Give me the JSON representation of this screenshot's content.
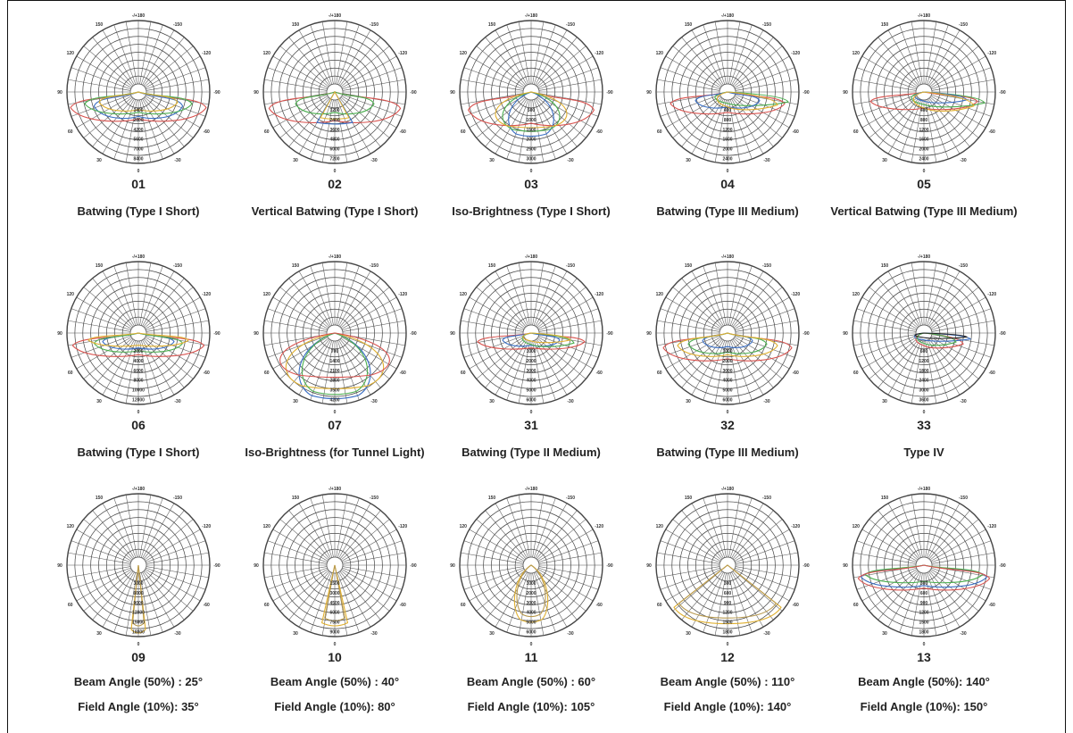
{
  "chart_data": [
    {
      "type": "polar",
      "number": "01",
      "description": "Batwing (Type I Short)",
      "tick_top": "-/+180",
      "angle_labels": [
        "-150",
        "150",
        "-120",
        "120",
        "-90",
        "90",
        "-60",
        "60",
        "-30",
        "30",
        "0"
      ],
      "radial_labels": [
        "1400",
        "2800",
        "4200",
        "5600",
        "7000",
        "8400"
      ],
      "series": [
        {
          "color": "#d9534f",
          "shape": "bat",
          "w": 0.95,
          "d": 0.4
        },
        {
          "color": "#3a6fc4",
          "shape": "bat",
          "w": 0.62,
          "d": 0.36
        },
        {
          "color": "#4caf50",
          "shape": "bat",
          "w": 0.75,
          "d": 0.3
        },
        {
          "color": "#e0b030",
          "shape": "bat",
          "w": 0.55,
          "d": 0.26
        }
      ]
    },
    {
      "type": "polar",
      "number": "02",
      "description": "Vertical Batwing (Type I Short)",
      "tick_top": "-/+180",
      "angle_labels": [
        "-150",
        "150",
        "-120",
        "120",
        "-90",
        "90",
        "-60",
        "60",
        "-30",
        "30",
        "0"
      ],
      "radial_labels": [
        "1200",
        "2400",
        "3600",
        "4800",
        "6000",
        "7200"
      ],
      "series": [
        {
          "color": "#d9534f",
          "shape": "bat",
          "w": 0.92,
          "d": 0.42
        },
        {
          "color": "#3a6fc4",
          "shape": "cone",
          "w": 0.25,
          "d": 0.45
        },
        {
          "color": "#4caf50",
          "shape": "bat",
          "w": 0.55,
          "d": 0.3
        },
        {
          "color": "#e0b030",
          "shape": "cone",
          "w": 0.2,
          "d": 0.38
        }
      ]
    },
    {
      "type": "polar",
      "number": "03",
      "description": "Iso-Brightness (Type I Short)",
      "tick_top": "-/+180",
      "angle_labels": [
        "-150",
        "150",
        "-120",
        "120",
        "-90",
        "90",
        "-60",
        "60",
        "-30",
        "30",
        "0"
      ],
      "radial_labels": [
        "500",
        "1000",
        "1500",
        "2000",
        "2500",
        "3000"
      ],
      "series": [
        {
          "color": "#d9534f",
          "shape": "bat",
          "w": 0.88,
          "d": 0.46
        },
        {
          "color": "#3a6fc4",
          "shape": "round",
          "w": 0.38,
          "d": 0.62
        },
        {
          "color": "#4caf50",
          "shape": "round",
          "w": 0.48,
          "d": 0.55
        },
        {
          "color": "#e0b030",
          "shape": "round",
          "w": 0.6,
          "d": 0.5
        }
      ]
    },
    {
      "type": "polar",
      "number": "04",
      "description": "Batwing (Type III Medium)",
      "tick_top": "-/+180",
      "angle_labels": [
        "-150",
        "150",
        "-120",
        "120",
        "-90",
        "90",
        "-60",
        "60",
        "-30",
        "30",
        "0"
      ],
      "radial_labels": [
        "400",
        "800",
        "1200",
        "1600",
        "2000",
        "2400"
      ],
      "series": [
        {
          "color": "#d9534f",
          "shape": "bat",
          "w": 0.8,
          "d": 0.3
        },
        {
          "color": "#4caf50",
          "shape": "side",
          "w": 0.85,
          "d": 0.2
        },
        {
          "color": "#3a6fc4",
          "shape": "bat",
          "w": 0.45,
          "d": 0.22
        },
        {
          "color": "#e0b030",
          "shape": "side",
          "w": 0.7,
          "d": 0.26
        }
      ]
    },
    {
      "type": "polar",
      "number": "05",
      "description": "Vertical Batwing (Type III Medium)",
      "tick_top": "-/+180",
      "angle_labels": [
        "-150",
        "150",
        "-120",
        "120",
        "-90",
        "90",
        "-60",
        "60",
        "-30",
        "30",
        "0"
      ],
      "radial_labels": [
        "400",
        "800",
        "1200",
        "1600",
        "2000",
        "2400"
      ],
      "series": [
        {
          "color": "#d9534f",
          "shape": "bat",
          "w": 0.75,
          "d": 0.24
        },
        {
          "color": "#4caf50",
          "shape": "side",
          "w": 0.85,
          "d": 0.22
        },
        {
          "color": "#3a6fc4",
          "shape": "side",
          "w": 0.6,
          "d": 0.16
        },
        {
          "color": "#e0b030",
          "shape": "side",
          "w": 0.7,
          "d": 0.28
        }
      ]
    },
    {
      "type": "polar",
      "number": "06",
      "description": "Batwing (Type I Short)",
      "tick_top": "-/+180",
      "angle_labels": [
        "-150",
        "150",
        "-120",
        "120",
        "-90",
        "90",
        "-60",
        "60",
        "-30",
        "30",
        "0"
      ],
      "radial_labels": [
        "2000",
        "4000",
        "6000",
        "8000",
        "10000",
        "12000"
      ],
      "series": [
        {
          "color": "#d9534f",
          "shape": "bat",
          "w": 0.92,
          "d": 0.32
        },
        {
          "color": "#3a6fc4",
          "shape": "bat",
          "w": 0.5,
          "d": 0.22
        },
        {
          "color": "#4caf50",
          "shape": "bat",
          "w": 0.62,
          "d": 0.26
        },
        {
          "color": "#e0b030",
          "shape": "bat",
          "w": 0.7,
          "d": 0.18
        }
      ]
    },
    {
      "type": "polar",
      "number": "07",
      "description": "Iso-Brightness (for Tunnel Light)",
      "tick_top": "-/+180",
      "angle_labels": [
        "-150",
        "150",
        "-120",
        "120",
        "-90",
        "90",
        "-60",
        "60",
        "-30",
        "30",
        "0"
      ],
      "radial_labels": [
        "700",
        "1400",
        "2100",
        "2800",
        "3500",
        "4200"
      ],
      "series": [
        {
          "color": "#3a6fc4",
          "shape": "round",
          "w": 0.6,
          "d": 0.92
        },
        {
          "color": "#e0b030",
          "shape": "round",
          "w": 0.82,
          "d": 0.78
        },
        {
          "color": "#4caf50",
          "shape": "round",
          "w": 0.55,
          "d": 0.86
        },
        {
          "color": "#d9534f",
          "shape": "round",
          "w": 0.92,
          "d": 0.62
        }
      ]
    },
    {
      "type": "polar",
      "number": "31",
      "description": "Batwing (Type II Medium)",
      "tick_top": "-/+180",
      "angle_labels": [
        "-150",
        "150",
        "-120",
        "120",
        "-90",
        "90",
        "-60",
        "60",
        "-30",
        "30",
        "0"
      ],
      "radial_labels": [
        "1000",
        "2000",
        "3000",
        "4000",
        "5000",
        "6000"
      ],
      "series": [
        {
          "color": "#d9534f",
          "shape": "bat",
          "w": 0.75,
          "d": 0.22
        },
        {
          "color": "#3a6fc4",
          "shape": "bat",
          "w": 0.4,
          "d": 0.18
        },
        {
          "color": "#4caf50",
          "shape": "side",
          "w": 0.6,
          "d": 0.2
        },
        {
          "color": "#e0b030",
          "shape": "side",
          "w": 0.55,
          "d": 0.14
        }
      ]
    },
    {
      "type": "polar",
      "number": "32",
      "description": "Batwing (Type III Medium)",
      "tick_top": "-/+180",
      "angle_labels": [
        "-150",
        "150",
        "-120",
        "120",
        "-90",
        "90",
        "-60",
        "60",
        "-30",
        "30",
        "0"
      ],
      "radial_labels": [
        "1000",
        "2000",
        "3000",
        "4000",
        "5000",
        "6000"
      ],
      "series": [
        {
          "color": "#d9534f",
          "shape": "bat",
          "w": 0.9,
          "d": 0.38
        },
        {
          "color": "#3a6fc4",
          "shape": "bat",
          "w": 0.35,
          "d": 0.2
        },
        {
          "color": "#4caf50",
          "shape": "bat",
          "w": 0.55,
          "d": 0.28
        },
        {
          "color": "#e0b030",
          "shape": "bat",
          "w": 0.7,
          "d": 0.32
        }
      ]
    },
    {
      "type": "polar",
      "number": "33",
      "description": "Type IV",
      "tick_top": "-/+180",
      "angle_labels": [
        "-150",
        "150",
        "-120",
        "120",
        "-90",
        "90",
        "-60",
        "60",
        "-30",
        "30",
        "0"
      ],
      "radial_labels": [
        "600",
        "1200",
        "1800",
        "2400",
        "3000",
        "3600"
      ],
      "series": [
        {
          "color": "#d9534f",
          "shape": "side",
          "w": 0.55,
          "d": 0.22
        },
        {
          "color": "#3a6fc4",
          "shape": "side",
          "w": 0.65,
          "d": 0.12
        },
        {
          "color": "#4caf50",
          "shape": "side",
          "w": 0.45,
          "d": 0.18
        },
        {
          "color": "#222222",
          "shape": "side",
          "w": 0.6,
          "d": 0.08
        }
      ]
    },
    {
      "type": "polar",
      "number": "09",
      "beam": "Beam Angle (50%) : 25°",
      "field": "Field Angle (10%):  35°",
      "tick_top": "-/+180",
      "angle_labels": [
        "-150",
        "150",
        "-120",
        "120",
        "-90",
        "90",
        "-60",
        "60",
        "-30",
        "30",
        "0"
      ],
      "radial_labels": [
        "3000",
        "6000",
        "9000",
        "12000",
        "15000",
        "18000"
      ],
      "series": [
        {
          "color": "#e0b030",
          "shape": "cone",
          "w": 0.1,
          "d": 0.95
        },
        {
          "color": "#b89a50",
          "shape": "cone",
          "w": 0.08,
          "d": 0.85
        }
      ]
    },
    {
      "type": "polar",
      "number": "10",
      "beam": "Beam Angle (50%) : 40°",
      "field": "Field Angle (10%):  80°",
      "tick_top": "-/+180",
      "angle_labels": [
        "-150",
        "150",
        "-120",
        "120",
        "-90",
        "90",
        "-60",
        "60",
        "-30",
        "30",
        "0"
      ],
      "radial_labels": [
        "1500",
        "3000",
        "4500",
        "6000",
        "7500",
        "9000"
      ],
      "series": [
        {
          "color": "#e0b030",
          "shape": "cone",
          "w": 0.18,
          "d": 0.85
        },
        {
          "color": "#b89a50",
          "shape": "cone",
          "w": 0.14,
          "d": 0.78
        }
      ]
    },
    {
      "type": "polar",
      "number": "11",
      "beam": "Beam Angle (50%) : 60°",
      "field": "Field Angle (10%):  105°",
      "tick_top": "-/+180",
      "angle_labels": [
        "-150",
        "150",
        "-120",
        "120",
        "-90",
        "90",
        "-60",
        "60",
        "-30",
        "30",
        "0"
      ],
      "radial_labels": [
        "1000",
        "2000",
        "3000",
        "4000",
        "5000",
        "6000"
      ],
      "series": [
        {
          "color": "#e0b030",
          "shape": "round",
          "w": 0.28,
          "d": 0.8
        },
        {
          "color": "#b89a50",
          "shape": "round",
          "w": 0.24,
          "d": 0.72
        }
      ]
    },
    {
      "type": "polar",
      "number": "12",
      "beam": "Beam Angle (50%) : 110°",
      "field": "Field Angle (10%):  140°",
      "tick_top": "-/+180",
      "angle_labels": [
        "-150",
        "150",
        "-120",
        "120",
        "-90",
        "90",
        "-60",
        "60",
        "-30",
        "30",
        "0"
      ],
      "radial_labels": [
        "300",
        "600",
        "900",
        "1200",
        "1500",
        "1800"
      ],
      "series": [
        {
          "color": "#e0b030",
          "shape": "wide",
          "w": 0.75,
          "d": 0.82
        },
        {
          "color": "#b89a50",
          "shape": "wide",
          "w": 0.68,
          "d": 0.74
        }
      ]
    },
    {
      "type": "polar",
      "number": "13",
      "beam": "Beam Angle (50%): 140°",
      "field": "Field Angle (10%):  150°",
      "tick_top": "-/+180",
      "angle_labels": [
        "-150",
        "150",
        "-120",
        "120",
        "-90",
        "90",
        "-60",
        "60",
        "-30",
        "30",
        "0"
      ],
      "radial_labels": [
        "300",
        "600",
        "900",
        "1200",
        "1500",
        "1800"
      ],
      "series": [
        {
          "color": "#3a6fc4",
          "shape": "bat",
          "w": 0.88,
          "d": 0.3
        },
        {
          "color": "#4caf50",
          "shape": "bat",
          "w": 0.82,
          "d": 0.24
        },
        {
          "color": "#d9534f",
          "shape": "bat",
          "w": 0.92,
          "d": 0.34
        }
      ]
    }
  ]
}
